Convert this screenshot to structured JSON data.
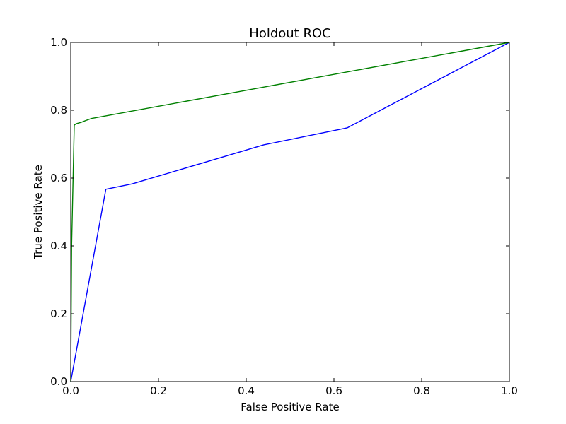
{
  "chart_data": {
    "type": "line",
    "title": "Holdout ROC",
    "xlabel": "False Positive Rate",
    "ylabel": "True Positive Rate",
    "xlim": [
      0.0,
      1.0
    ],
    "ylim": [
      0.0,
      1.0
    ],
    "xticks": [
      "0.0",
      "0.2",
      "0.4",
      "0.6",
      "0.8",
      "1.0"
    ],
    "yticks": [
      "0.0",
      "0.2",
      "0.4",
      "0.6",
      "0.8",
      "1.0"
    ],
    "grid": false,
    "legend": null,
    "series": [
      {
        "color": "#0000ff",
        "x": [
          0.0,
          0.08,
          0.14,
          0.44,
          0.63,
          1.0
        ],
        "y": [
          0.0,
          0.567,
          0.583,
          0.698,
          0.748,
          1.0
        ]
      },
      {
        "color": "#008000",
        "x": [
          0.0,
          0.002,
          0.008,
          0.012,
          0.025,
          0.035,
          0.048,
          1.0
        ],
        "y": [
          0.0,
          0.4,
          0.756,
          0.76,
          0.765,
          0.77,
          0.776,
          1.0
        ]
      }
    ]
  }
}
